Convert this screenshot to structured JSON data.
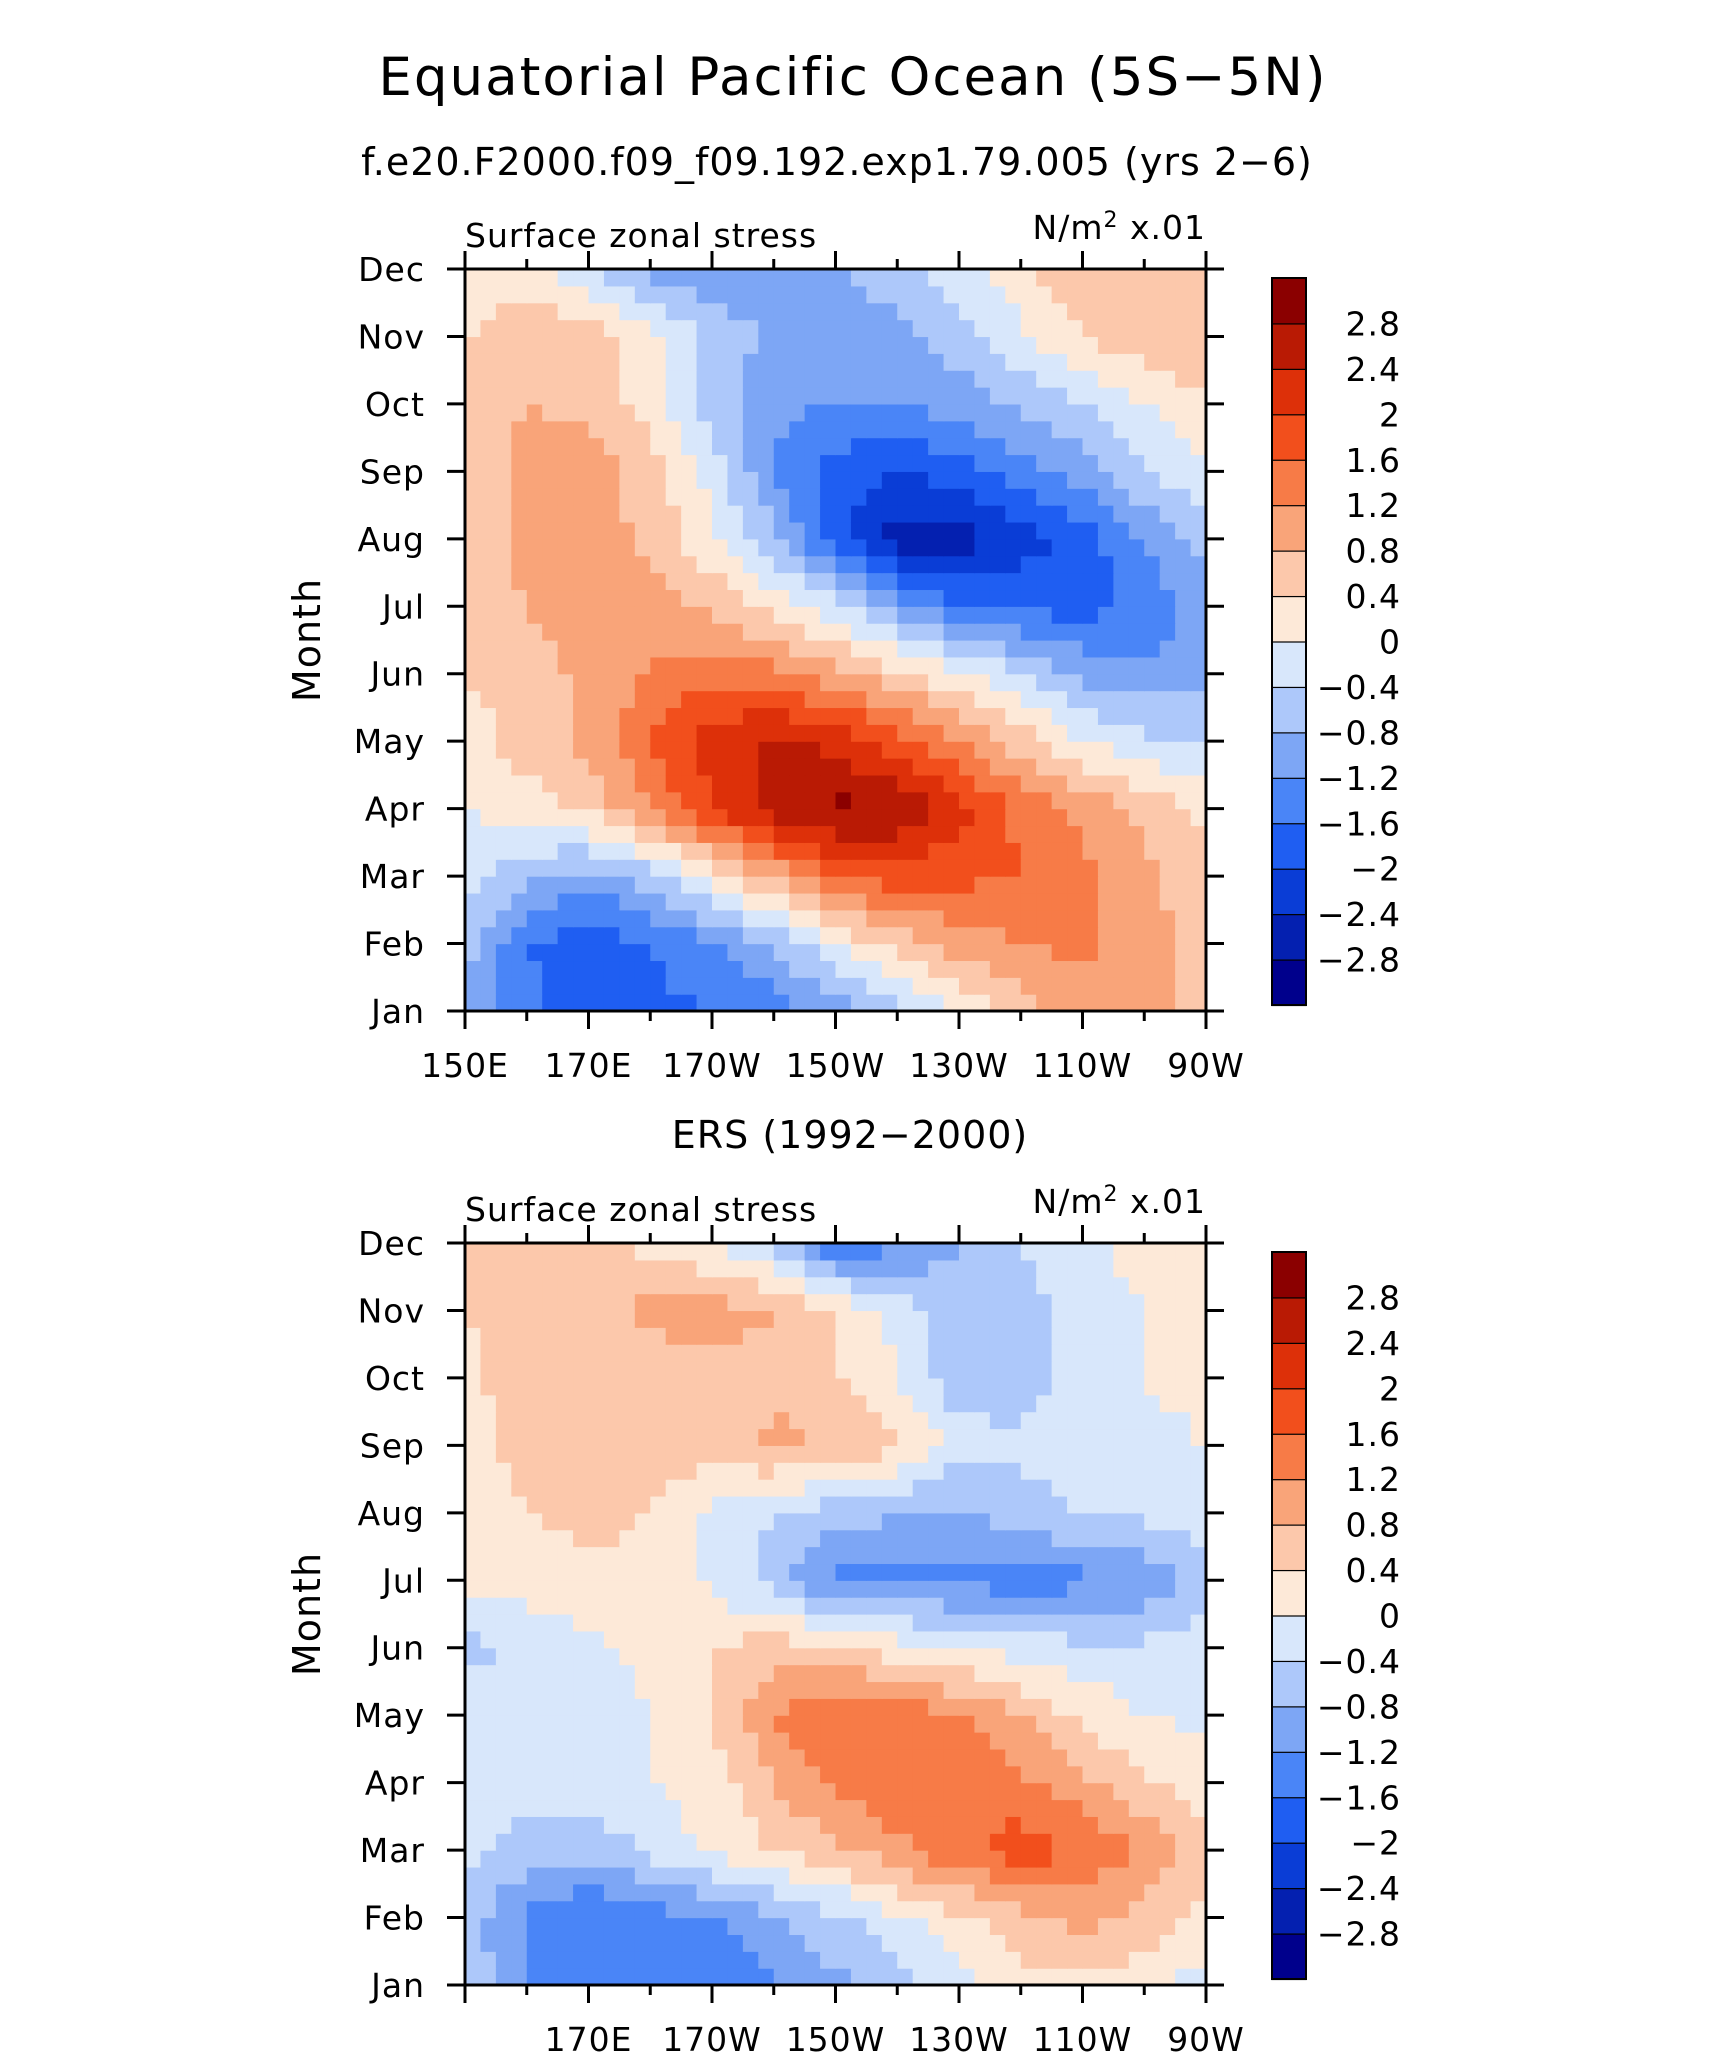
{
  "figure": {
    "title": "Equatorial Pacific Ocean (5S−5N)",
    "subtitle": "f.e20.F2000.f09_f09.192.exp1.79.005 (yrs 2−6)",
    "units_sup": "2"
  },
  "colorbar": {
    "levels": [
      -2.8,
      -2.4,
      -2.0,
      -1.6,
      -1.2,
      -0.8,
      -0.4,
      0,
      0.4,
      0.8,
      1.2,
      1.6,
      2.0,
      2.4,
      2.8
    ],
    "labels": [
      "−2.8",
      "−2.4",
      "−2",
      "−1.6",
      "−1.2",
      "−0.8",
      "−0.4",
      "0",
      "0.4",
      "0.8",
      "1.2",
      "1.6",
      "2",
      "2.4",
      "2.8"
    ],
    "colors": [
      "#00008c",
      "#0420b0",
      "#0a3dd6",
      "#1f5ef2",
      "#4a85f7",
      "#7da6f5",
      "#adc8fa",
      "#d8e7fb",
      "#fde9d8",
      "#fcc8ab",
      "#f9a479",
      "#f77b47",
      "#f24f1c",
      "#dd3009",
      "#b91a04",
      "#8b0000"
    ]
  },
  "chart_data": [
    {
      "type": "heatmap",
      "panel_title": "",
      "left_title": "Surface zonal stress",
      "right_title_prefix": "N/m",
      "right_title_suffix": " x.01",
      "ylabel": "Month",
      "xlim": [
        150,
        270
      ],
      "x_unit": "degrees longitude east",
      "x_ticks": [
        150,
        170,
        190,
        210,
        230,
        250,
        270
      ],
      "x_tick_labels": [
        "150E",
        "170E",
        "170W",
        "150W",
        "130W",
        "110W",
        "90W"
      ],
      "y_ticks": [
        "Jan",
        "Feb",
        "Mar",
        "Apr",
        "May",
        "Jun",
        "Jul",
        "Aug",
        "Sep",
        "Oct",
        "Nov",
        "Dec"
      ],
      "x": [
        150,
        160,
        170,
        180,
        190,
        200,
        210,
        220,
        230,
        240,
        250,
        260,
        270
      ],
      "z": [
        [
          -1.0,
          -1.5,
          -1.8,
          -1.7,
          -1.6,
          -1.4,
          -1.0,
          -0.5,
          0.0,
          0.6,
          1.0,
          1.0,
          0.6
        ],
        [
          -0.6,
          -1.6,
          -1.9,
          -1.6,
          -1.3,
          -0.8,
          0.0,
          0.6,
          1.0,
          1.2,
          1.3,
          1.0,
          0.6
        ],
        [
          -0.2,
          -0.7,
          -1.0,
          -0.6,
          0.2,
          0.9,
          1.6,
          1.8,
          1.7,
          1.6,
          1.3,
          0.9,
          0.5
        ],
        [
          0.0,
          0.2,
          0.5,
          1.2,
          2.0,
          2.6,
          2.9,
          2.8,
          2.2,
          1.5,
          1.1,
          0.7,
          0.3
        ],
        [
          0.2,
          0.6,
          0.9,
          1.6,
          2.2,
          2.5,
          2.3,
          1.8,
          1.2,
          0.6,
          0.0,
          -0.3,
          -0.5
        ],
        [
          0.4,
          0.6,
          0.9,
          1.2,
          1.5,
          1.3,
          0.9,
          0.5,
          0.1,
          -0.4,
          -0.9,
          -1.1,
          -0.9
        ],
        [
          0.6,
          0.8,
          1.0,
          1.0,
          0.7,
          0.3,
          -0.2,
          -1.0,
          -1.6,
          -1.7,
          -1.8,
          -1.5,
          -1.0
        ],
        [
          0.6,
          0.9,
          1.0,
          0.7,
          0.1,
          -0.7,
          -1.9,
          -2.6,
          -2.6,
          -2.2,
          -1.8,
          -1.2,
          -0.6
        ],
        [
          0.6,
          0.9,
          1.0,
          0.6,
          -0.2,
          -1.2,
          -1.8,
          -2.0,
          -1.8,
          -1.4,
          -1.0,
          -0.4,
          0.0
        ],
        [
          0.5,
          0.8,
          0.7,
          0.2,
          -0.6,
          -1.1,
          -1.2,
          -1.2,
          -1.0,
          -0.7,
          -0.4,
          0.0,
          0.3
        ],
        [
          0.4,
          0.7,
          0.6,
          0.1,
          -0.5,
          -0.9,
          -1.0,
          -1.0,
          -0.6,
          -0.1,
          0.4,
          0.7,
          0.8
        ],
        [
          0.1,
          0.2,
          -0.3,
          -0.9,
          -1.2,
          -1.0,
          -0.8,
          -0.6,
          -0.2,
          0.3,
          0.8,
          0.8,
          0.5
        ]
      ],
      "show_first_x_label": true
    },
    {
      "type": "heatmap",
      "panel_title": "ERS (1992−2000)",
      "left_title": "Surface zonal stress",
      "right_title_prefix": "N/m",
      "right_title_suffix": " x.01",
      "ylabel": "Month",
      "xlim": [
        150,
        270
      ],
      "x_unit": "degrees longitude east",
      "x_ticks": [
        170,
        190,
        210,
        230,
        250,
        270
      ],
      "x_tick_labels": [
        "170E",
        "170W",
        "150W",
        "130W",
        "110W",
        "90W"
      ],
      "y_ticks": [
        "Jan",
        "Feb",
        "Mar",
        "Apr",
        "May",
        "Jun",
        "Jul",
        "Aug",
        "Sep",
        "Oct",
        "Nov",
        "Dec"
      ],
      "x": [
        150,
        160,
        170,
        180,
        190,
        200,
        210,
        220,
        230,
        240,
        250,
        260,
        270
      ],
      "z": [
        [
          -0.5,
          -1.2,
          -1.4,
          -1.6,
          -1.5,
          -1.3,
          -0.9,
          -0.6,
          -0.2,
          0.2,
          0.3,
          0.1,
          -0.2
        ],
        [
          -0.6,
          -1.3,
          -1.6,
          -1.4,
          -1.2,
          -0.9,
          -0.5,
          -0.1,
          0.3,
          0.7,
          0.9,
          0.7,
          0.3
        ],
        [
          -0.2,
          -0.6,
          -0.7,
          -0.3,
          0.1,
          0.4,
          0.7,
          1.1,
          1.5,
          1.8,
          1.6,
          1.1,
          0.5
        ],
        [
          -0.1,
          -0.2,
          -0.2,
          0.0,
          0.2,
          0.8,
          1.3,
          1.5,
          1.6,
          1.3,
          0.9,
          0.5,
          0.1
        ],
        [
          -0.2,
          -0.3,
          -0.2,
          0.0,
          0.4,
          1.2,
          1.6,
          1.5,
          1.2,
          0.8,
          0.3,
          0.0,
          -0.1
        ],
        [
          -0.5,
          -0.3,
          -0.1,
          0.1,
          0.4,
          0.6,
          0.5,
          0.2,
          0.0,
          -0.2,
          -0.3,
          -0.3,
          -0.2
        ],
        [
          0.1,
          0.2,
          0.3,
          0.3,
          -0.1,
          -0.6,
          -1.3,
          -1.3,
          -1.3,
          -1.4,
          -1.3,
          -1.1,
          -0.6
        ],
        [
          0.2,
          0.4,
          0.5,
          0.4,
          -0.1,
          -0.4,
          -0.6,
          -0.8,
          -0.9,
          -0.6,
          -0.4,
          -0.3,
          -0.1
        ],
        [
          0.3,
          0.5,
          0.6,
          0.7,
          0.6,
          0.9,
          0.8,
          0.5,
          -0.2,
          -0.3,
          -0.2,
          -0.1,
          0.0
        ],
        [
          0.3,
          0.6,
          0.5,
          0.6,
          0.6,
          0.7,
          0.4,
          0.0,
          -0.7,
          -0.6,
          -0.2,
          0.0,
          0.1
        ],
        [
          0.4,
          0.6,
          0.7,
          0.9,
          1.0,
          0.8,
          0.4,
          -0.1,
          -0.7,
          -0.5,
          -0.3,
          0.0,
          0.2
        ],
        [
          0.6,
          0.7,
          0.5,
          0.3,
          0.0,
          -0.5,
          -1.6,
          -1.3,
          -0.8,
          -0.4,
          -0.1,
          0.2,
          0.3
        ]
      ],
      "show_first_x_label": false
    }
  ]
}
